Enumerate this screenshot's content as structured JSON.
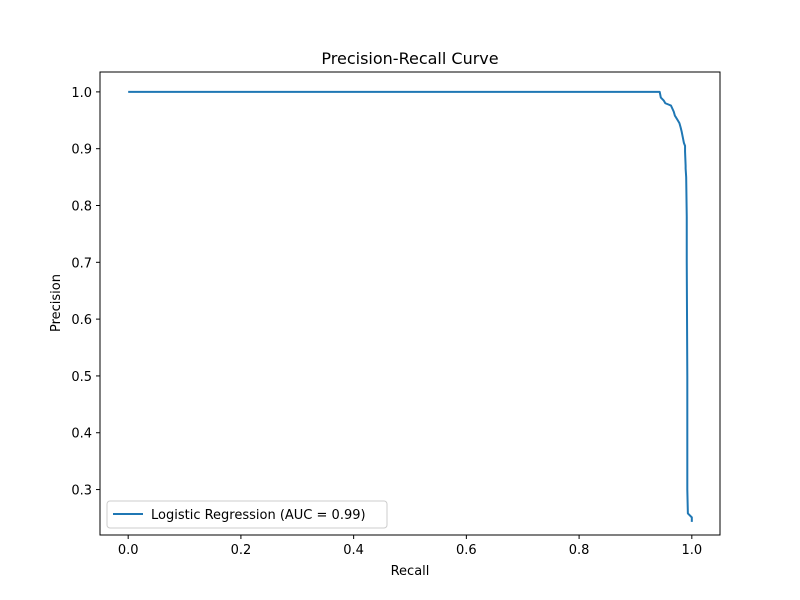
{
  "chart_data": {
    "type": "line",
    "title": "Precision-Recall Curve",
    "xlabel": "Recall",
    "ylabel": "Precision",
    "xlim": [
      -0.05,
      1.05
    ],
    "ylim": [
      0.22,
      1.035
    ],
    "xticks": [
      0.0,
      0.2,
      0.4,
      0.6,
      0.8,
      1.0
    ],
    "xtick_labels": [
      "0.0",
      "0.2",
      "0.4",
      "0.6",
      "0.8",
      "1.0"
    ],
    "yticks": [
      0.3,
      0.4,
      0.5,
      0.6,
      0.7,
      0.8,
      0.9,
      1.0
    ],
    "ytick_labels": [
      "0.3",
      "0.4",
      "0.5",
      "0.6",
      "0.7",
      "0.8",
      "0.9",
      "1.0"
    ],
    "grid": false,
    "legend_position": "lower-left",
    "series": [
      {
        "name": "Logistic Regression (AUC = 0.99)",
        "color": "#1f77b4",
        "x": [
          0.0,
          0.943,
          0.945,
          0.95,
          0.953,
          0.958,
          0.963,
          0.968,
          0.97,
          0.972,
          0.975,
          0.978,
          0.98,
          0.982,
          0.984,
          0.986,
          0.988,
          0.988,
          0.989,
          0.989,
          0.99,
          0.991,
          0.991,
          0.992,
          0.992,
          0.993,
          1.0,
          1.0
        ],
        "y": [
          1.0,
          1.0,
          0.99,
          0.985,
          0.98,
          0.978,
          0.976,
          0.965,
          0.958,
          0.955,
          0.95,
          0.945,
          0.938,
          0.93,
          0.92,
          0.91,
          0.905,
          0.895,
          0.87,
          0.865,
          0.85,
          0.78,
          0.7,
          0.5,
          0.3,
          0.258,
          0.251,
          0.243
        ]
      }
    ]
  }
}
